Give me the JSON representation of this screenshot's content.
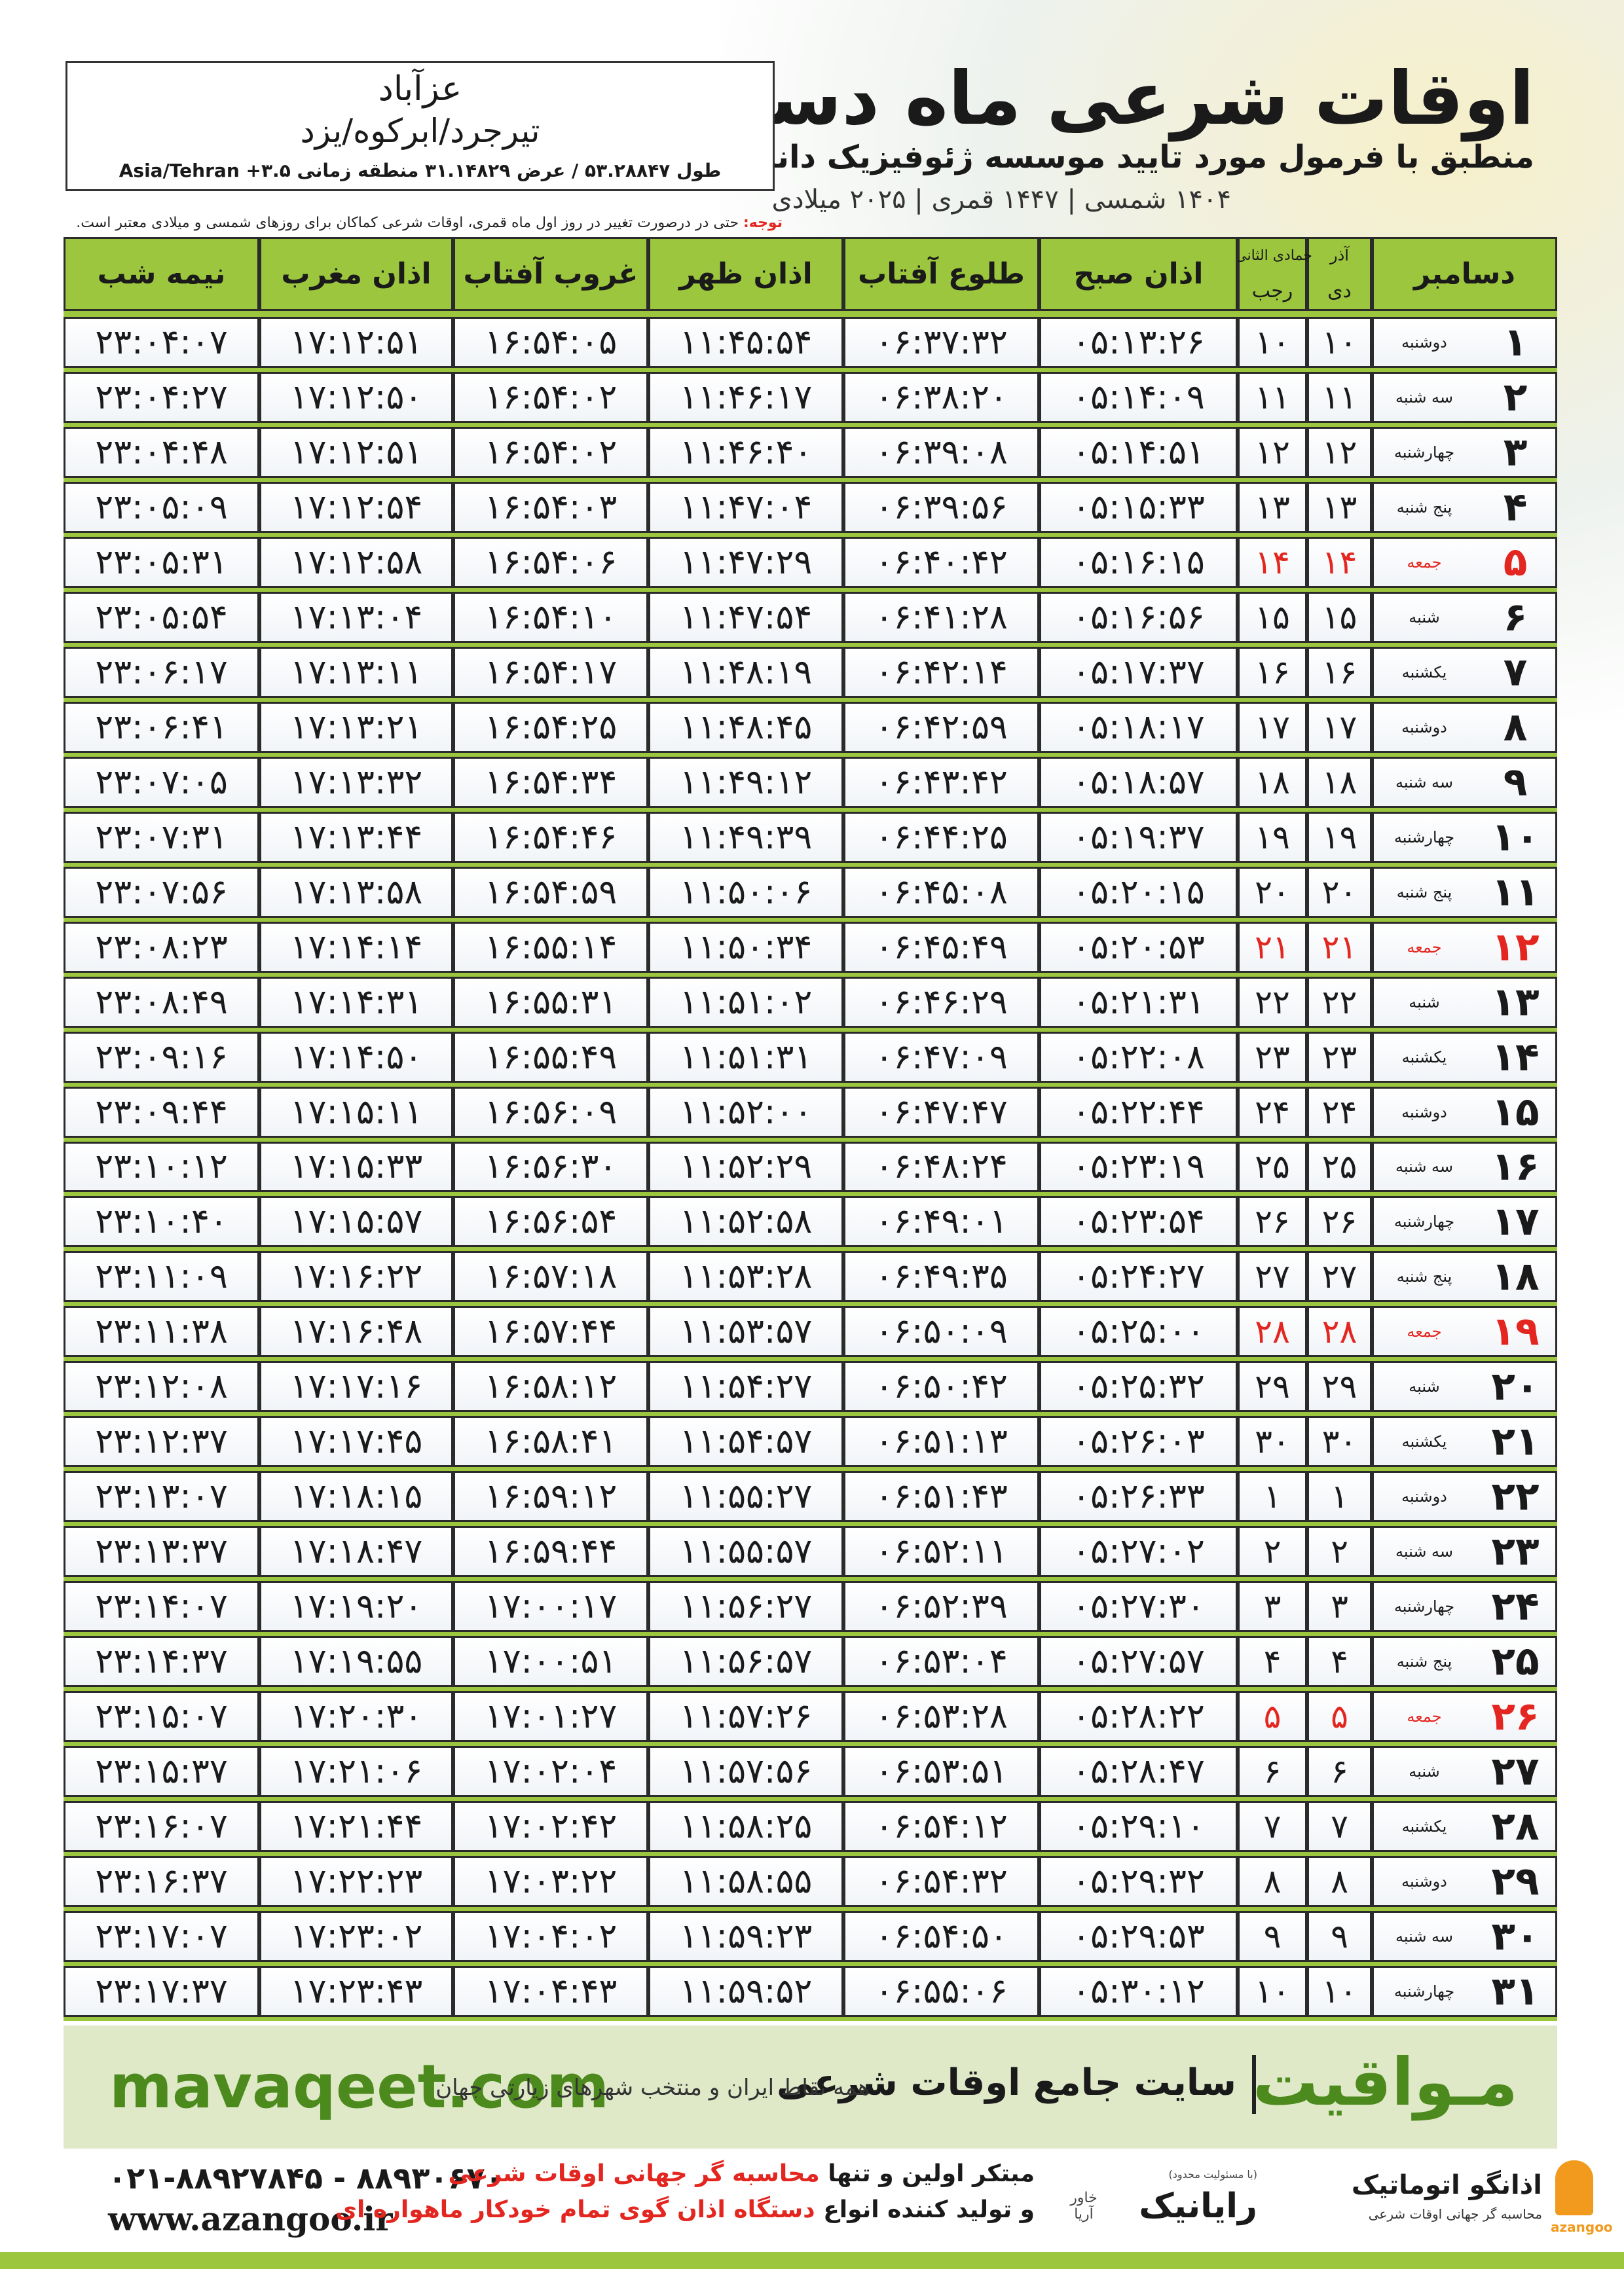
{
  "header": {
    "title": "اوقات شرعی ماه دسامبر",
    "subtitle": "منطبق با فرمول مورد تایید موسسه ژئوفیزیک دانشگاه تهران",
    "dates": "۱۴۰۴ شمسی | ۱۴۴۷ قمری | ۲۰۲۵ میلادی"
  },
  "location": {
    "city": "عزآباد",
    "region": "تیرجرد/ابرکوه/یزد",
    "coords": "طول ۵۳.۲۸۸۴۷ / عرض ۳۱.۱۴۸۲۹ منطقه زمانی ۳.۵+ Asia/Tehran"
  },
  "note": {
    "label": "توجه:",
    "text": "حتی در درصورت تغییر در روز اول ماه قمری، اوقات شرعی کماکان برای روزهای شمسی و میلادی معتبر است."
  },
  "table": {
    "holiday_color": "#e3261f",
    "headers": {
      "month": "دسامبر",
      "solar_top": "آذر",
      "solar": "دی",
      "lunar_top": "جمادی الثانی",
      "lunar": "رجب",
      "times": [
        "اذان صبح",
        "طلوع آفتاب",
        "اذان ظهر",
        "غروب آفتاب",
        "اذان مغرب",
        "نیمه شب"
      ]
    },
    "rows": [
      {
        "cells": [
          "۱",
          "دوشنبه",
          "۱۰",
          "۱۰",
          "۰۵:۱۳:۲۶",
          "۰۶:۳۷:۳۲",
          "۱۱:۴۵:۵۴",
          "۱۶:۵۴:۰۵",
          "۱۷:۱۲:۵۱",
          "۲۳:۰۴:۰۷"
        ]
      },
      {
        "cells": [
          "۲",
          "سه شنبه",
          "۱۱",
          "۱۱",
          "۰۵:۱۴:۰۹",
          "۰۶:۳۸:۲۰",
          "۱۱:۴۶:۱۷",
          "۱۶:۵۴:۰۲",
          "۱۷:۱۲:۵۰",
          "۲۳:۰۴:۲۷"
        ]
      },
      {
        "cells": [
          "۳",
          "چهارشنبه",
          "۱۲",
          "۱۲",
          "۰۵:۱۴:۵۱",
          "۰۶:۳۹:۰۸",
          "۱۱:۴۶:۴۰",
          "۱۶:۵۴:۰۲",
          "۱۷:۱۲:۵۱",
          "۲۳:۰۴:۴۸"
        ]
      },
      {
        "cells": [
          "۴",
          "پنج شنبه",
          "۱۳",
          "۱۳",
          "۰۵:۱۵:۳۳",
          "۰۶:۳۹:۵۶",
          "۱۱:۴۷:۰۴",
          "۱۶:۵۴:۰۳",
          "۱۷:۱۲:۵۴",
          "۲۳:۰۵:۰۹"
        ]
      },
      {
        "cells": [
          "۵",
          "جمعه",
          "۱۴",
          "۱۴",
          "۰۵:۱۶:۱۵",
          "۰۶:۴۰:۴۲",
          "۱۱:۴۷:۲۹",
          "۱۶:۵۴:۰۶",
          "۱۷:۱۲:۵۸",
          "۲۳:۰۵:۳۱"
        ],
        "holiday": true
      },
      {
        "cells": [
          "۶",
          "شنبه",
          "۱۵",
          "۱۵",
          "۰۵:۱۶:۵۶",
          "۰۶:۴۱:۲۸",
          "۱۱:۴۷:۵۴",
          "۱۶:۵۴:۱۰",
          "۱۷:۱۳:۰۴",
          "۲۳:۰۵:۵۴"
        ]
      },
      {
        "cells": [
          "۷",
          "یکشنبه",
          "۱۶",
          "۱۶",
          "۰۵:۱۷:۳۷",
          "۰۶:۴۲:۱۴",
          "۱۱:۴۸:۱۹",
          "۱۶:۵۴:۱۷",
          "۱۷:۱۳:۱۱",
          "۲۳:۰۶:۱۷"
        ]
      },
      {
        "cells": [
          "۸",
          "دوشنبه",
          "۱۷",
          "۱۷",
          "۰۵:۱۸:۱۷",
          "۰۶:۴۲:۵۹",
          "۱۱:۴۸:۴۵",
          "۱۶:۵۴:۲۵",
          "۱۷:۱۳:۲۱",
          "۲۳:۰۶:۴۱"
        ]
      },
      {
        "cells": [
          "۹",
          "سه شنبه",
          "۱۸",
          "۱۸",
          "۰۵:۱۸:۵۷",
          "۰۶:۴۳:۴۲",
          "۱۱:۴۹:۱۲",
          "۱۶:۵۴:۳۴",
          "۱۷:۱۳:۳۲",
          "۲۳:۰۷:۰۵"
        ]
      },
      {
        "cells": [
          "۱۰",
          "چهارشنبه",
          "۱۹",
          "۱۹",
          "۰۵:۱۹:۳۷",
          "۰۶:۴۴:۲۵",
          "۱۱:۴۹:۳۹",
          "۱۶:۵۴:۴۶",
          "۱۷:۱۳:۴۴",
          "۲۳:۰۷:۳۱"
        ]
      },
      {
        "cells": [
          "۱۱",
          "پنج شنبه",
          "۲۰",
          "۲۰",
          "۰۵:۲۰:۱۵",
          "۰۶:۴۵:۰۸",
          "۱۱:۵۰:۰۶",
          "۱۶:۵۴:۵۹",
          "۱۷:۱۳:۵۸",
          "۲۳:۰۷:۵۶"
        ]
      },
      {
        "cells": [
          "۱۲",
          "جمعه",
          "۲۱",
          "۲۱",
          "۰۵:۲۰:۵۳",
          "۰۶:۴۵:۴۹",
          "۱۱:۵۰:۳۴",
          "۱۶:۵۵:۱۴",
          "۱۷:۱۴:۱۴",
          "۲۳:۰۸:۲۳"
        ],
        "holiday": true
      },
      {
        "cells": [
          "۱۳",
          "شنبه",
          "۲۲",
          "۲۲",
          "۰۵:۲۱:۳۱",
          "۰۶:۴۶:۲۹",
          "۱۱:۵۱:۰۲",
          "۱۶:۵۵:۳۱",
          "۱۷:۱۴:۳۱",
          "۲۳:۰۸:۴۹"
        ]
      },
      {
        "cells": [
          "۱۴",
          "یکشنبه",
          "۲۳",
          "۲۳",
          "۰۵:۲۲:۰۸",
          "۰۶:۴۷:۰۹",
          "۱۱:۵۱:۳۱",
          "۱۶:۵۵:۴۹",
          "۱۷:۱۴:۵۰",
          "۲۳:۰۹:۱۶"
        ]
      },
      {
        "cells": [
          "۱۵",
          "دوشنبه",
          "۲۴",
          "۲۴",
          "۰۵:۲۲:۴۴",
          "۰۶:۴۷:۴۷",
          "۱۱:۵۲:۰۰",
          "۱۶:۵۶:۰۹",
          "۱۷:۱۵:۱۱",
          "۲۳:۰۹:۴۴"
        ]
      },
      {
        "cells": [
          "۱۶",
          "سه شنبه",
          "۲۵",
          "۲۵",
          "۰۵:۲۳:۱۹",
          "۰۶:۴۸:۲۴",
          "۱۱:۵۲:۲۹",
          "۱۶:۵۶:۳۰",
          "۱۷:۱۵:۳۳",
          "۲۳:۱۰:۱۲"
        ]
      },
      {
        "cells": [
          "۱۷",
          "چهارشنبه",
          "۲۶",
          "۲۶",
          "۰۵:۲۳:۵۴",
          "۰۶:۴۹:۰۱",
          "۱۱:۵۲:۵۸",
          "۱۶:۵۶:۵۴",
          "۱۷:۱۵:۵۷",
          "۲۳:۱۰:۴۰"
        ]
      },
      {
        "cells": [
          "۱۸",
          "پنج شنبه",
          "۲۷",
          "۲۷",
          "۰۵:۲۴:۲۷",
          "۰۶:۴۹:۳۵",
          "۱۱:۵۳:۲۸",
          "۱۶:۵۷:۱۸",
          "۱۷:۱۶:۲۲",
          "۲۳:۱۱:۰۹"
        ]
      },
      {
        "cells": [
          "۱۹",
          "جمعه",
          "۲۸",
          "۲۸",
          "۰۵:۲۵:۰۰",
          "۰۶:۵۰:۰۹",
          "۱۱:۵۳:۵۷",
          "۱۶:۵۷:۴۴",
          "۱۷:۱۶:۴۸",
          "۲۳:۱۱:۳۸"
        ],
        "holiday": true
      },
      {
        "cells": [
          "۲۰",
          "شنبه",
          "۲۹",
          "۲۹",
          "۰۵:۲۵:۳۲",
          "۰۶:۵۰:۴۲",
          "۱۱:۵۴:۲۷",
          "۱۶:۵۸:۱۲",
          "۱۷:۱۷:۱۶",
          "۲۳:۱۲:۰۸"
        ]
      },
      {
        "cells": [
          "۲۱",
          "یکشنبه",
          "۳۰",
          "۳۰",
          "۰۵:۲۶:۰۳",
          "۰۶:۵۱:۱۳",
          "۱۱:۵۴:۵۷",
          "۱۶:۵۸:۴۱",
          "۱۷:۱۷:۴۵",
          "۲۳:۱۲:۳۷"
        ]
      },
      {
        "cells": [
          "۲۲",
          "دوشنبه",
          "۱",
          "۱",
          "۰۵:۲۶:۳۳",
          "۰۶:۵۱:۴۳",
          "۱۱:۵۵:۲۷",
          "۱۶:۵۹:۱۲",
          "۱۷:۱۸:۱۵",
          "۲۳:۱۳:۰۷"
        ]
      },
      {
        "cells": [
          "۲۳",
          "سه شنبه",
          "۲",
          "۲",
          "۰۵:۲۷:۰۲",
          "۰۶:۵۲:۱۱",
          "۱۱:۵۵:۵۷",
          "۱۶:۵۹:۴۴",
          "۱۷:۱۸:۴۷",
          "۲۳:۱۳:۳۷"
        ]
      },
      {
        "cells": [
          "۲۴",
          "چهارشنبه",
          "۳",
          "۳",
          "۰۵:۲۷:۳۰",
          "۰۶:۵۲:۳۹",
          "۱۱:۵۶:۲۷",
          "۱۷:۰۰:۱۷",
          "۱۷:۱۹:۲۰",
          "۲۳:۱۴:۰۷"
        ]
      },
      {
        "cells": [
          "۲۵",
          "پنج شنبه",
          "۴",
          "۴",
          "۰۵:۲۷:۵۷",
          "۰۶:۵۳:۰۴",
          "۱۱:۵۶:۵۷",
          "۱۷:۰۰:۵۱",
          "۱۷:۱۹:۵۵",
          "۲۳:۱۴:۳۷"
        ]
      },
      {
        "cells": [
          "۲۶",
          "جمعه",
          "۵",
          "۵",
          "۰۵:۲۸:۲۲",
          "۰۶:۵۳:۲۸",
          "۱۱:۵۷:۲۶",
          "۱۷:۰۱:۲۷",
          "۱۷:۲۰:۳۰",
          "۲۳:۱۵:۰۷"
        ],
        "holiday": true
      },
      {
        "cells": [
          "۲۷",
          "شنبه",
          "۶",
          "۶",
          "۰۵:۲۸:۴۷",
          "۰۶:۵۳:۵۱",
          "۱۱:۵۷:۵۶",
          "۱۷:۰۲:۰۴",
          "۱۷:۲۱:۰۶",
          "۲۳:۱۵:۳۷"
        ]
      },
      {
        "cells": [
          "۲۸",
          "یکشنبه",
          "۷",
          "۷",
          "۰۵:۲۹:۱۰",
          "۰۶:۵۴:۱۲",
          "۱۱:۵۸:۲۵",
          "۱۷:۰۲:۴۲",
          "۱۷:۲۱:۴۴",
          "۲۳:۱۶:۰۷"
        ]
      },
      {
        "cells": [
          "۲۹",
          "دوشنبه",
          "۸",
          "۸",
          "۰۵:۲۹:۳۲",
          "۰۶:۵۴:۳۲",
          "۱۱:۵۸:۵۵",
          "۱۷:۰۳:۲۲",
          "۱۷:۲۲:۲۳",
          "۲۳:۱۶:۳۷"
        ]
      },
      {
        "cells": [
          "۳۰",
          "سه شنبه",
          "۹",
          "۹",
          "۰۵:۲۹:۵۳",
          "۰۶:۵۴:۵۰",
          "۱۱:۵۹:۲۳",
          "۱۷:۰۴:۰۲",
          "۱۷:۲۳:۰۲",
          "۲۳:۱۷:۰۷"
        ]
      },
      {
        "cells": [
          "۳۱",
          "چهارشنبه",
          "۱۰",
          "۱۰",
          "۰۵:۳۰:۱۲",
          "۰۶:۵۵:۰۶",
          "۱۱:۵۹:۵۲",
          "۱۷:۰۴:۴۳",
          "۱۷:۲۳:۴۳",
          "۲۳:۱۷:۳۷"
        ]
      }
    ]
  },
  "footer": {
    "site": "mavaqeet.com",
    "brand": "مـواقیت",
    "slogan": "سایت جامع اوقات شرعی",
    "slogan_sub": "همه نقاط ایران و منتخب شهرهای زیارتی جهان",
    "phone": "۰۲۱-۸۸۹۲۷۸۴۵ - ۸۸۹۳۰۶۷۰",
    "web": "www.azangoo.ir",
    "line1": "مبتکر اولین و تنها",
    "line1_red": "محاسبه گر جهانی اوقات شرعی",
    "line2": "و تولید کننده انواع",
    "line2_red": "دستگاه اذان گوی تمام خودکار ماهواره ای",
    "logo1": "رایانیک",
    "logo1_sub": "خاور آریا",
    "logo1_note": "(با مسئولیت محدود)",
    "logo2": "اذانگو اتوماتیک",
    "logo2_sub": "محاسبه گر جهانی اوقات شرعی",
    "logo2_latin": "azangoo"
  }
}
